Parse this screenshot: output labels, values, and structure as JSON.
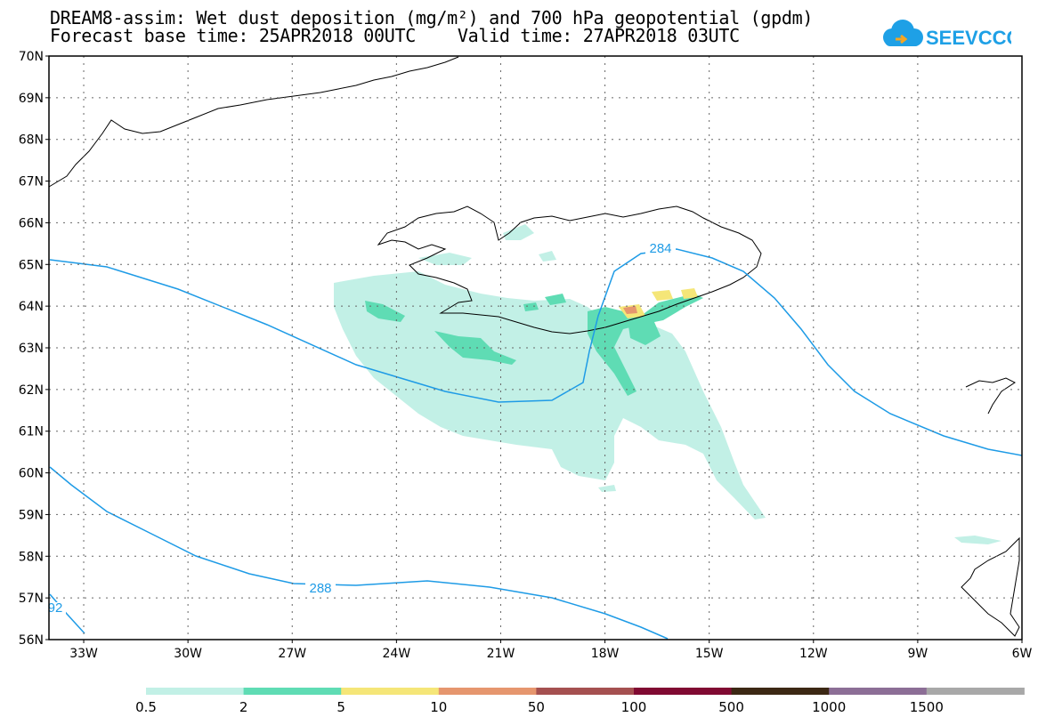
{
  "header": {
    "title_line1": "DREAM8-assim: Wet dust deposition (mg/m²) and 700 hPa geopotential (gpdm)",
    "title_line2": "Forecast base time: 25APR2018 00UTC    Valid time: 27APR2018 03UTC"
  },
  "logo": {
    "text": "SEEVCCC",
    "color": "#1ea0e6",
    "accent": "#f5a623"
  },
  "map": {
    "lat_labels": [
      "70N",
      "69N",
      "68N",
      "67N",
      "66N",
      "65N",
      "64N",
      "63N",
      "62N",
      "61N",
      "60N",
      "59N",
      "58N",
      "57N",
      "56N"
    ],
    "lon_labels": [
      "33W",
      "30W",
      "27W",
      "24W",
      "21W",
      "18W",
      "15W",
      "12W",
      "9W",
      "6W"
    ],
    "contour_labels": [
      "284",
      "288",
      "92"
    ],
    "contour_color": "#1e9be6",
    "coast_color": "#000000"
  },
  "legend": {
    "values": [
      "0.5",
      "2",
      "5",
      "10",
      "50",
      "100",
      "500",
      "1000",
      "1500"
    ],
    "colors": [
      "#c2f0e6",
      "#5fdcb4",
      "#f5e678",
      "#e6966e",
      "#a55050",
      "#800a32",
      "#3c2814",
      "#8c6e96",
      "#a8a8a8"
    ]
  }
}
